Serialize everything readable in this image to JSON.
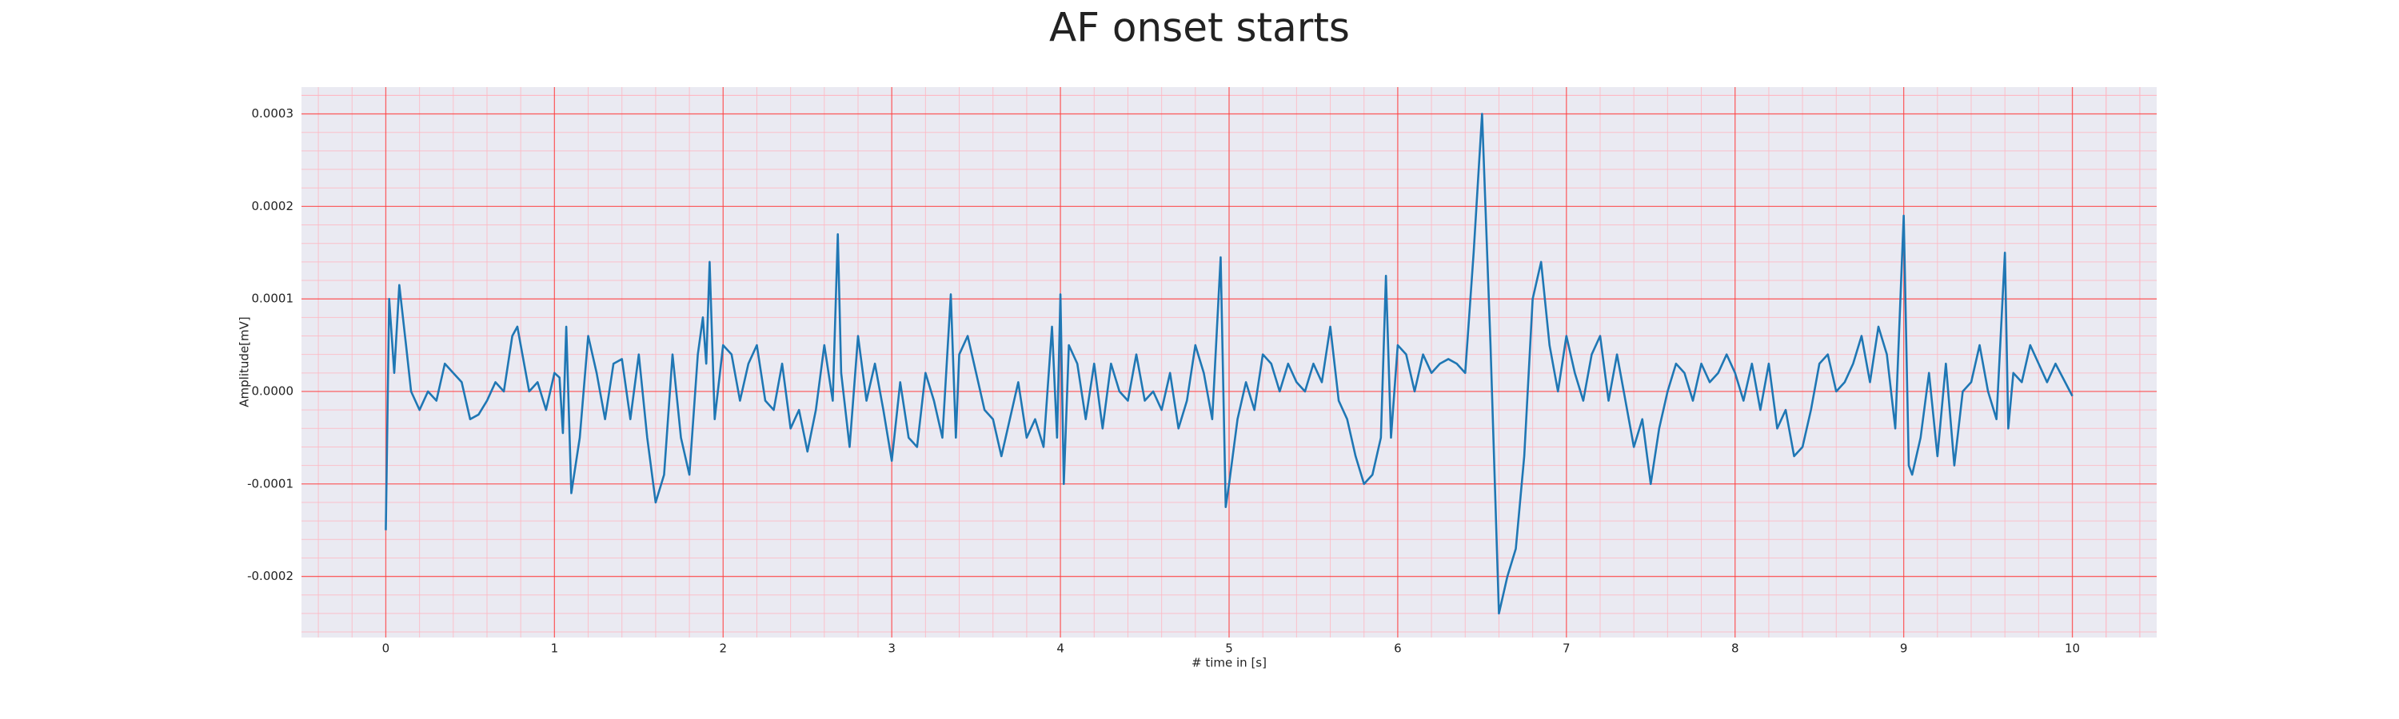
{
  "chart_data": {
    "type": "line",
    "title": "AF onset starts",
    "xlabel": "# time in [s]",
    "ylabel": "Amplitude[mV]",
    "xlim": [
      -0.5,
      10.5
    ],
    "ylim": [
      -0.000266,
      0.000329
    ],
    "xticks": [
      0,
      1,
      2,
      3,
      4,
      5,
      6,
      7,
      8,
      9,
      10
    ],
    "yticks": [
      -0.0002,
      -0.0001,
      {
        "value": 0,
        "label": "0.0000"
      },
      0.0001,
      0.0002,
      0.0003
    ],
    "grid": true,
    "minor_grid": true,
    "series": [
      {
        "color": "#1f77b4",
        "x": [
          0,
          0.02,
          0.05,
          0.08,
          0.12,
          0.15,
          0.2,
          0.25,
          0.3,
          0.35,
          0.4,
          0.45,
          0.5,
          0.55,
          0.6,
          0.65,
          0.7,
          0.75,
          0.78,
          0.8,
          0.85,
          0.9,
          0.95,
          1.0,
          1.03,
          1.05,
          1.07,
          1.1,
          1.15,
          1.2,
          1.25,
          1.3,
          1.35,
          1.4,
          1.45,
          1.5,
          1.55,
          1.6,
          1.65,
          1.7,
          1.75,
          1.8,
          1.85,
          1.88,
          1.9,
          1.92,
          1.95,
          2.0,
          2.05,
          2.1,
          2.15,
          2.2,
          2.25,
          2.3,
          2.35,
          2.4,
          2.45,
          2.5,
          2.55,
          2.6,
          2.65,
          2.68,
          2.7,
          2.75,
          2.8,
          2.85,
          2.9,
          2.95,
          3.0,
          3.05,
          3.1,
          3.15,
          3.2,
          3.25,
          3.3,
          3.35,
          3.38,
          3.4,
          3.45,
          3.5,
          3.55,
          3.6,
          3.65,
          3.7,
          3.75,
          3.8,
          3.85,
          3.9,
          3.95,
          3.98,
          4.0,
          4.02,
          4.05,
          4.1,
          4.15,
          4.2,
          4.25,
          4.3,
          4.35,
          4.4,
          4.45,
          4.5,
          4.55,
          4.6,
          4.65,
          4.7,
          4.75,
          4.8,
          4.85,
          4.9,
          4.95,
          4.98,
          5.0,
          5.05,
          5.1,
          5.15,
          5.2,
          5.25,
          5.3,
          5.35,
          5.4,
          5.45,
          5.5,
          5.55,
          5.6,
          5.65,
          5.7,
          5.75,
          5.8,
          5.85,
          5.9,
          5.93,
          5.96,
          6.0,
          6.05,
          6.1,
          6.15,
          6.2,
          6.25,
          6.3,
          6.35,
          6.4,
          6.45,
          6.5,
          6.55,
          6.6,
          6.65,
          6.7,
          6.75,
          6.8,
          6.85,
          6.9,
          6.95,
          7.0,
          7.05,
          7.1,
          7.15,
          7.2,
          7.25,
          7.3,
          7.35,
          7.4,
          7.45,
          7.5,
          7.55,
          7.6,
          7.65,
          7.7,
          7.75,
          7.8,
          7.85,
          7.9,
          7.95,
          8.0,
          8.05,
          8.1,
          8.15,
          8.2,
          8.25,
          8.3,
          8.35,
          8.4,
          8.45,
          8.5,
          8.55,
          8.6,
          8.65,
          8.7,
          8.75,
          8.8,
          8.85,
          8.9,
          8.95,
          9.0,
          9.03,
          9.05,
          9.1,
          9.15,
          9.2,
          9.25,
          9.3,
          9.35,
          9.4,
          9.45,
          9.5,
          9.55,
          9.6,
          9.62,
          9.65,
          9.7,
          9.75,
          9.8,
          9.85,
          9.9,
          10.0
        ],
        "values": [
          -0.00015,
          0.0001,
          2e-05,
          0.000115,
          5e-05,
          0,
          -2e-05,
          0,
          -1e-05,
          3e-05,
          2e-05,
          1e-05,
          -3e-05,
          -2.5e-05,
          -1e-05,
          1e-05,
          0,
          6e-05,
          7e-05,
          5e-05,
          0,
          1e-05,
          -2e-05,
          2e-05,
          1.5e-05,
          -4.5e-05,
          7e-05,
          -0.00011,
          -5e-05,
          6e-05,
          2e-05,
          -3e-05,
          3e-05,
          3.5e-05,
          -3e-05,
          4e-05,
          -5e-05,
          -0.00012,
          -9e-05,
          4e-05,
          -5e-05,
          -9e-05,
          4e-05,
          8e-05,
          3e-05,
          0.00014,
          -3e-05,
          5e-05,
          4e-05,
          -1e-05,
          3e-05,
          5e-05,
          -1e-05,
          -2e-05,
          3e-05,
          -4e-05,
          -2e-05,
          -6.5e-05,
          -2e-05,
          5e-05,
          -1e-05,
          0.00017,
          2e-05,
          -6e-05,
          6e-05,
          -1e-05,
          3e-05,
          -2e-05,
          -7.5e-05,
          1e-05,
          -5e-05,
          -6e-05,
          2e-05,
          -1e-05,
          -5e-05,
          0.000105,
          -5e-05,
          4e-05,
          6e-05,
          2e-05,
          -2e-05,
          -3e-05,
          -7e-05,
          -3e-05,
          1e-05,
          -5e-05,
          -3e-05,
          -6e-05,
          7e-05,
          -5e-05,
          0.000105,
          -0.0001,
          5e-05,
          3e-05,
          -3e-05,
          3e-05,
          -4e-05,
          3e-05,
          0,
          -1e-05,
          4e-05,
          -1e-05,
          0,
          -2e-05,
          2e-05,
          -4e-05,
          -1e-05,
          5e-05,
          2e-05,
          -3e-05,
          0.000145,
          -0.000125,
          -0.0001,
          -3e-05,
          1e-05,
          -2e-05,
          4e-05,
          3e-05,
          0,
          3e-05,
          1e-05,
          0,
          3e-05,
          1e-05,
          7e-05,
          -1e-05,
          -3e-05,
          -7e-05,
          -0.0001,
          -9e-05,
          -5e-05,
          0.000125,
          -5e-05,
          5e-05,
          4e-05,
          0,
          4e-05,
          2e-05,
          3e-05,
          3.5e-05,
          3e-05,
          2e-05,
          0.00015,
          0.0003,
          5e-05,
          -0.00024,
          -0.0002,
          -0.00017,
          -7e-05,
          0.0001,
          0.00014,
          5e-05,
          0,
          6e-05,
          2e-05,
          -1e-05,
          4e-05,
          6e-05,
          -1e-05,
          4e-05,
          -1e-05,
          -6e-05,
          -3e-05,
          -0.0001,
          -4e-05,
          0,
          3e-05,
          2e-05,
          -1e-05,
          3e-05,
          1e-05,
          2e-05,
          4e-05,
          2e-05,
          -1e-05,
          3e-05,
          -2e-05,
          3e-05,
          -4e-05,
          -2e-05,
          -7e-05,
          -6e-05,
          -2e-05,
          3e-05,
          4e-05,
          0,
          1e-05,
          3e-05,
          6e-05,
          1e-05,
          7e-05,
          4e-05,
          -4e-05,
          0.00019,
          -8e-05,
          -9e-05,
          -5e-05,
          2e-05,
          -7e-05,
          3e-05,
          -8e-05,
          0,
          1e-05,
          5e-05,
          0,
          -3e-05,
          0.00015,
          -4e-05,
          2e-05,
          1e-05,
          5e-05,
          3e-05,
          1e-05,
          3e-05,
          -5e-06
        ]
      }
    ]
  }
}
